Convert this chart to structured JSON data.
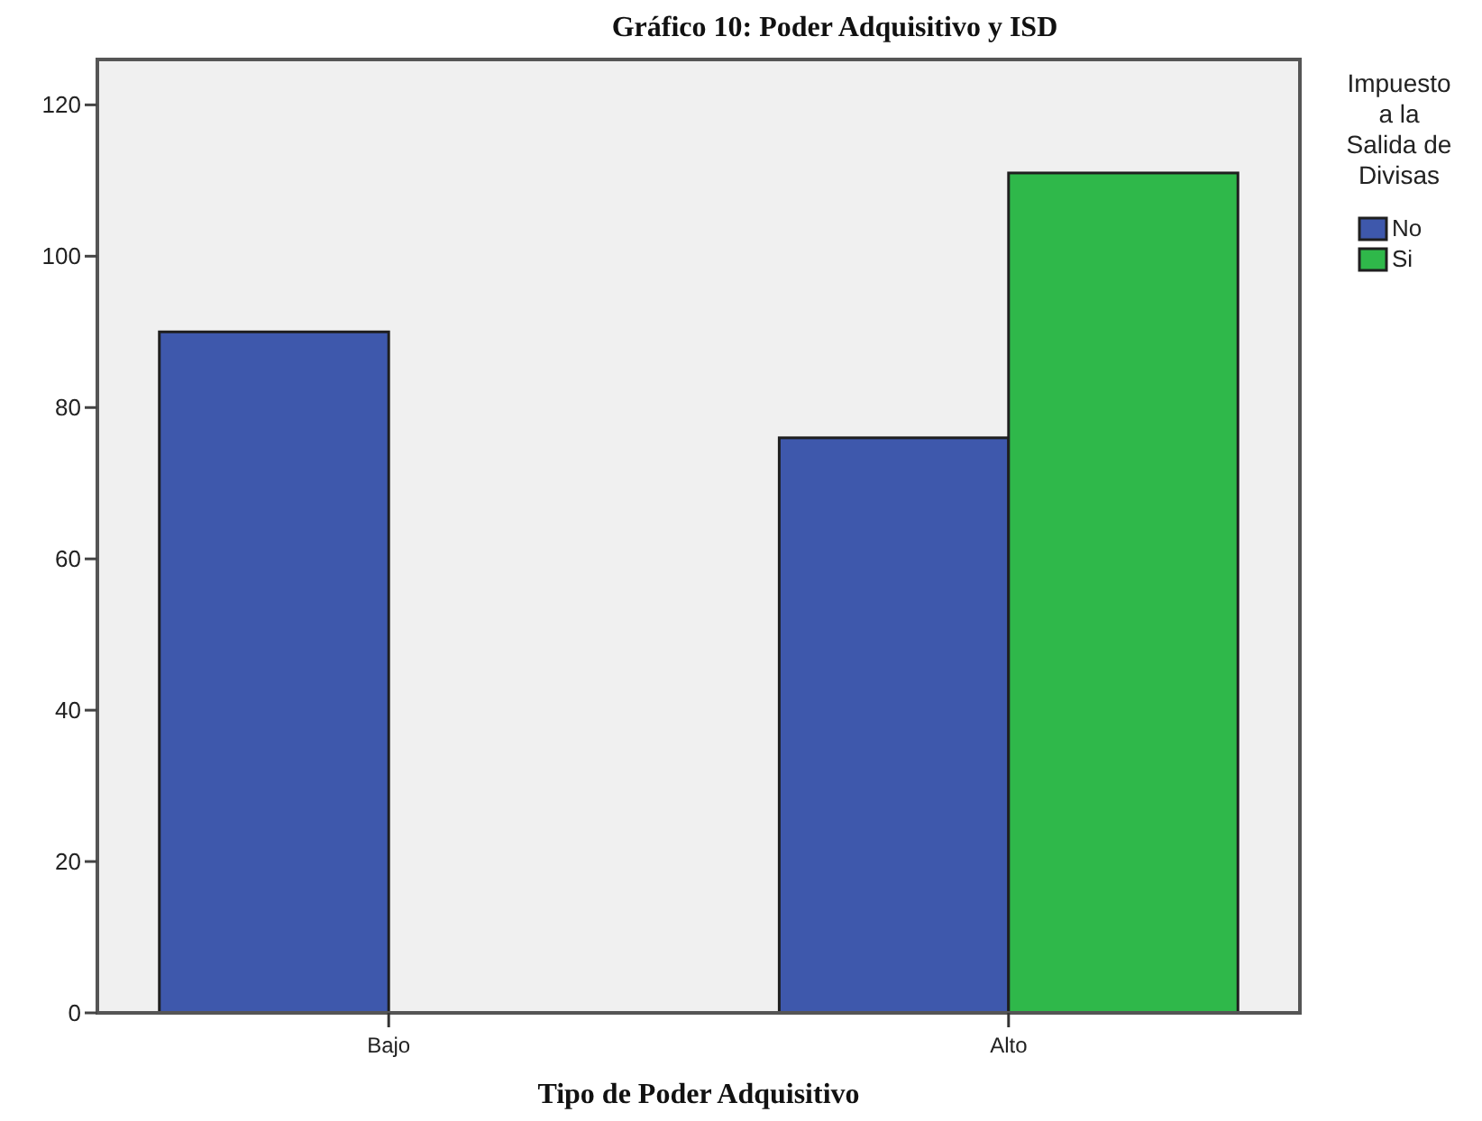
{
  "chart_data": {
    "type": "bar",
    "title": "Gráfico 10: Poder Adquisitivo y ISD",
    "xlabel": "Tipo de Poder Adquisitivo",
    "legend_title": "Impuesto a la Salida de Divisas",
    "categories": [
      "Bajo",
      "Alto"
    ],
    "series": [
      {
        "name": "No",
        "color": "#3e58ac",
        "values": [
          90,
          76
        ]
      },
      {
        "name": "Si",
        "color": "#2fb84a",
        "values": [
          null,
          111
        ]
      }
    ],
    "ylim": [
      0,
      126
    ],
    "yticks": [
      0,
      20,
      40,
      60,
      80,
      100,
      120
    ],
    "grid": false,
    "legend": "right"
  }
}
